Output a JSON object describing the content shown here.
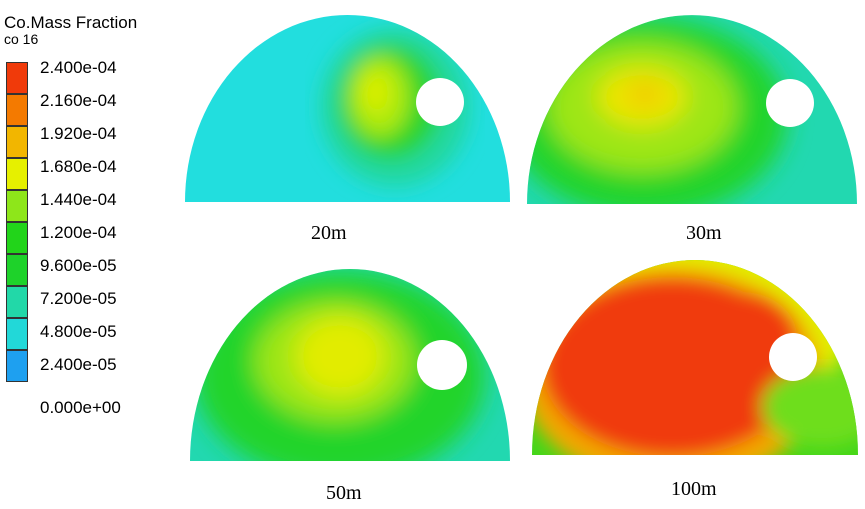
{
  "legend": {
    "title": "Co.Mass Fraction",
    "subtitle": "co 16",
    "ticks": [
      "2.400e-04",
      "2.160e-04",
      "1.920e-04",
      "1.680e-04",
      "1.440e-04",
      "1.200e-04",
      "9.600e-05",
      "7.200e-05",
      "4.800e-05",
      "2.400e-05",
      "0.000e+00"
    ],
    "colors": [
      "#f03a0a",
      "#f47a00",
      "#f2b600",
      "#e6f000",
      "#8ee61a",
      "#22d41a",
      "#1ed22a",
      "#22d8a8",
      "#22d8d8",
      "#1ea0f0",
      "#1a3ef0"
    ]
  },
  "panels": [
    {
      "caption": "20m"
    },
    {
      "caption": "30m"
    },
    {
      "caption": "50m"
    },
    {
      "caption": "100m"
    }
  ]
}
